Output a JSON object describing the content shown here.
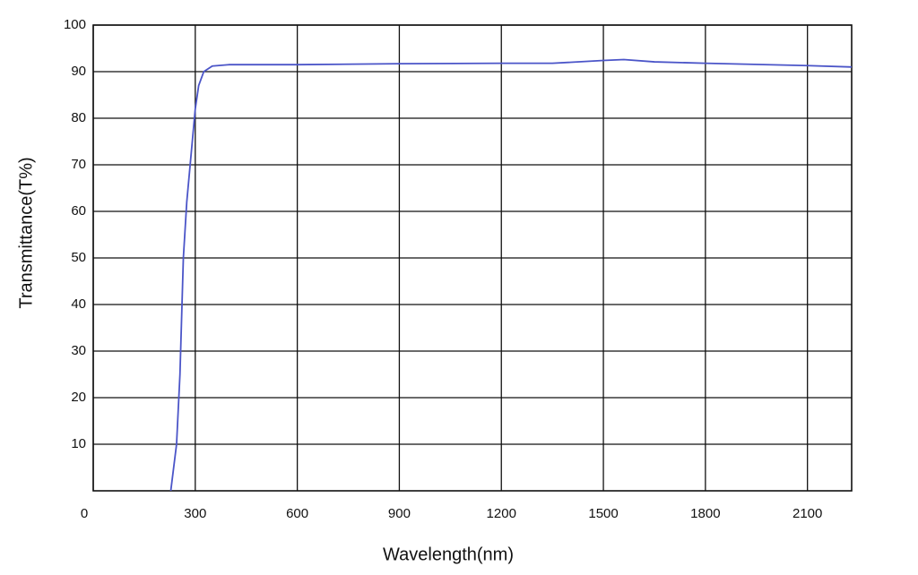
{
  "chart_data": {
    "type": "line",
    "x_label": "Wavelength(nm)",
    "y_label": "Transmittance(T%)",
    "x": [
      228,
      245,
      255,
      265,
      275,
      285,
      300,
      310,
      325,
      350,
      400,
      600,
      900,
      1200,
      1350,
      1500,
      1560,
      1650,
      1800,
      2100,
      2230
    ],
    "values": [
      0,
      10,
      25,
      50,
      62,
      70,
      82,
      87,
      90,
      91.2,
      91.5,
      91.5,
      91.7,
      91.8,
      91.8,
      92.4,
      92.6,
      92.1,
      91.8,
      91.3,
      91
    ],
    "color": "#4b55c8",
    "xlim": [
      0,
      2230
    ],
    "ylim": [
      0,
      100
    ],
    "xticks": [
      0,
      300,
      600,
      900,
      1200,
      1500,
      1800,
      2100
    ],
    "yticks": [
      10,
      20,
      30,
      40,
      50,
      60,
      70,
      80,
      90,
      100
    ],
    "grid": true
  }
}
